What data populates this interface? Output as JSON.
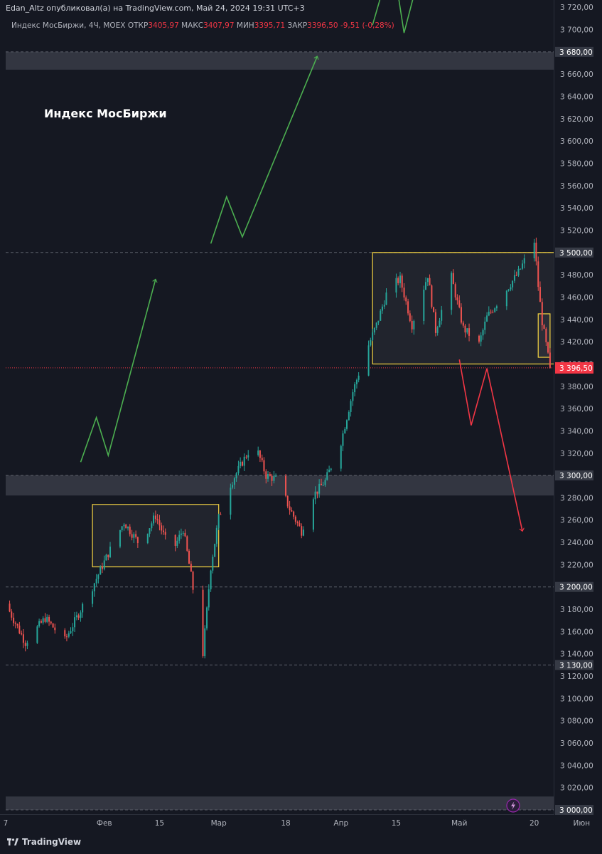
{
  "header": {
    "published": "Edan_Altz опубликовал(а) на TradingView.com, Май 24, 2024 19:31 UTC+3"
  },
  "legend": {
    "symbol": "Индекс МосБиржи, 4Ч, MOEX",
    "open_label": "ОТКР",
    "open": "3405,97",
    "high_label": "МАКС",
    "high": "3407,97",
    "low_label": "МИН",
    "low": "3395,71",
    "close_label": "ЗАКР",
    "close": "3396,50",
    "change": "-9,51 (-0,28%)"
  },
  "title": "Индекс МосБиржи",
  "brand": "TradingView",
  "colors": {
    "background": "#151822",
    "up": "#26a69a",
    "down": "#ef5350",
    "zone": "#363a45",
    "box": "#f5d442",
    "arrow_up": "#4caf50",
    "arrow_down": "#f23645",
    "price_line": "#f23645"
  },
  "chart_data": {
    "type": "candlestick",
    "title": "Индекс МосБиржи",
    "interval": "4Ч",
    "ylim": [
      3000,
      3730
    ],
    "y_ticks": [
      3020,
      3040,
      3060,
      3080,
      3100,
      3120,
      3140,
      3160,
      3180,
      3200,
      3220,
      3240,
      3260,
      3280,
      3300,
      3320,
      3340,
      3360,
      3380,
      3400,
      3420,
      3440,
      3460,
      3480,
      3500,
      3520,
      3540,
      3560,
      3580,
      3600,
      3620,
      3640,
      3660,
      3680,
      3700,
      3720
    ],
    "y_tick_labels": [
      "3 020,00",
      "3 040,00",
      "3 060,00",
      "3 080,00",
      "3 100,00",
      "3 120,00",
      "3 140,00",
      "3 160,00",
      "3 180,00",
      "3 200,00",
      "3 220,00",
      "3 240,00",
      "3 260,00",
      "3 280,00",
      "3 300,00",
      "3 320,00",
      "3 340,00",
      "3 360,00",
      "3 380,00",
      "3 400,00",
      "3 420,00",
      "3 440,00",
      "3 460,00",
      "3 480,00",
      "3 500,00",
      "3 520,00",
      "3 540,00",
      "3 560,00",
      "3 580,00",
      "3 600,00",
      "3 620,00",
      "3 640,00",
      "3 660,00",
      "3 680,00",
      "3 700,00",
      "3 720,00"
    ],
    "x_labels": [
      {
        "label": "7",
        "date": "2024-01-07"
      },
      {
        "label": "Фев",
        "date": "2024-02-01"
      },
      {
        "label": "15",
        "date": "2024-02-15"
      },
      {
        "label": "Мар",
        "date": "2024-03-01"
      },
      {
        "label": "18",
        "date": "2024-03-18"
      },
      {
        "label": "Апр",
        "date": "2024-04-01"
      },
      {
        "label": "15",
        "date": "2024-04-15"
      },
      {
        "label": "Май",
        "date": "2024-05-01"
      },
      {
        "label": "20",
        "date": "2024-05-20"
      },
      {
        "label": "Июн",
        "date": "2024-06-01"
      }
    ],
    "levels": [
      {
        "label": "3 680,00",
        "value": 3680,
        "style": "zone",
        "from": 3664,
        "to": 3680
      },
      {
        "label": "3 500,00",
        "value": 3500,
        "style": "dashed"
      },
      {
        "label": "3 300,00",
        "value": 3300,
        "style": "zone",
        "from": 3282,
        "to": 3300
      },
      {
        "label": "3 200,00",
        "value": 3200,
        "style": "dashed"
      },
      {
        "label": "3 130,00",
        "value": 3130,
        "style": "dashed"
      },
      {
        "label": "3 000,00",
        "value": 3000,
        "style": "zone",
        "from": 3000,
        "to": 3012
      }
    ],
    "last_price": {
      "label": "3 396,50",
      "value": 3396.5
    },
    "price_path": [
      {
        "date": "2024-01-07",
        "price": 3185
      },
      {
        "date": "2024-01-12",
        "price": 3150
      },
      {
        "date": "2024-01-17",
        "price": 3172
      },
      {
        "date": "2024-01-22",
        "price": 3152
      },
      {
        "date": "2024-01-29",
        "price": 3200
      },
      {
        "date": "2024-02-02",
        "price": 3230
      },
      {
        "date": "2024-02-06",
        "price": 3258
      },
      {
        "date": "2024-02-10",
        "price": 3238
      },
      {
        "date": "2024-02-14",
        "price": 3264
      },
      {
        "date": "2024-02-18",
        "price": 3230
      },
      {
        "date": "2024-02-21",
        "price": 3252
      },
      {
        "date": "2024-02-23",
        "price": 3210
      },
      {
        "date": "2024-02-26",
        "price": 3140
      },
      {
        "date": "2024-02-28",
        "price": 3218
      },
      {
        "date": "2024-03-01",
        "price": 3262
      },
      {
        "date": "2024-03-04",
        "price": 3292
      },
      {
        "date": "2024-03-07",
        "price": 3312
      },
      {
        "date": "2024-03-10",
        "price": 3330
      },
      {
        "date": "2024-03-13",
        "price": 3300
      },
      {
        "date": "2024-03-16",
        "price": 3296
      },
      {
        "date": "2024-03-19",
        "price": 3270
      },
      {
        "date": "2024-03-22",
        "price": 3250
      },
      {
        "date": "2024-03-25",
        "price": 3282
      },
      {
        "date": "2024-03-28",
        "price": 3295
      },
      {
        "date": "2024-04-01",
        "price": 3330
      },
      {
        "date": "2024-04-04",
        "price": 3375
      },
      {
        "date": "2024-04-07",
        "price": 3408
      },
      {
        "date": "2024-04-10",
        "price": 3435
      },
      {
        "date": "2024-04-13",
        "price": 3468
      },
      {
        "date": "2024-04-16",
        "price": 3476
      },
      {
        "date": "2024-04-19",
        "price": 3435
      },
      {
        "date": "2024-04-23",
        "price": 3480
      },
      {
        "date": "2024-04-25",
        "price": 3430
      },
      {
        "date": "2024-04-29",
        "price": 3478
      },
      {
        "date": "2024-05-02",
        "price": 3432
      },
      {
        "date": "2024-05-06",
        "price": 3418
      },
      {
        "date": "2024-05-08",
        "price": 3442
      },
      {
        "date": "2024-05-12",
        "price": 3462
      },
      {
        "date": "2024-05-16",
        "price": 3482
      },
      {
        "date": "2024-05-20",
        "price": 3510
      },
      {
        "date": "2024-05-21",
        "price": 3470
      },
      {
        "date": "2024-05-22",
        "price": 3438
      },
      {
        "date": "2024-05-24",
        "price": 3396.5
      }
    ],
    "rectangles": [
      {
        "x0": "2024-01-29",
        "x1": "2024-03-01",
        "y0": 3218,
        "y1": 3274
      },
      {
        "x0": "2024-04-09",
        "x1": "2024-05-27",
        "y0": 3400,
        "y1": 3500
      },
      {
        "x0": "2024-05-21",
        "x1": "2024-05-24",
        "y0": 3406,
        "y1": 3445
      }
    ],
    "projections": [
      {
        "direction": "up",
        "points": [
          [
            "2024-01-26",
            3312
          ],
          [
            "2024-01-30",
            3352
          ],
          [
            "2024-02-02",
            3318
          ],
          [
            "2024-02-14",
            3476
          ]
        ]
      },
      {
        "direction": "up",
        "points": [
          [
            "2024-02-28",
            3508
          ],
          [
            "2024-03-03",
            3550
          ],
          [
            "2024-03-07",
            3514
          ],
          [
            "2024-03-26",
            3676
          ]
        ]
      },
      {
        "direction": "up",
        "points": [
          [
            "2024-04-09",
            3704
          ],
          [
            "2024-04-14",
            3765
          ],
          [
            "2024-04-17",
            3697
          ],
          [
            "2024-04-22",
            3765
          ]
        ]
      },
      {
        "direction": "down",
        "points": [
          [
            "2024-05-01",
            3404
          ],
          [
            "2024-05-04",
            3345
          ],
          [
            "2024-05-08",
            3396
          ],
          [
            "2024-05-17",
            3250
          ]
        ]
      }
    ]
  }
}
